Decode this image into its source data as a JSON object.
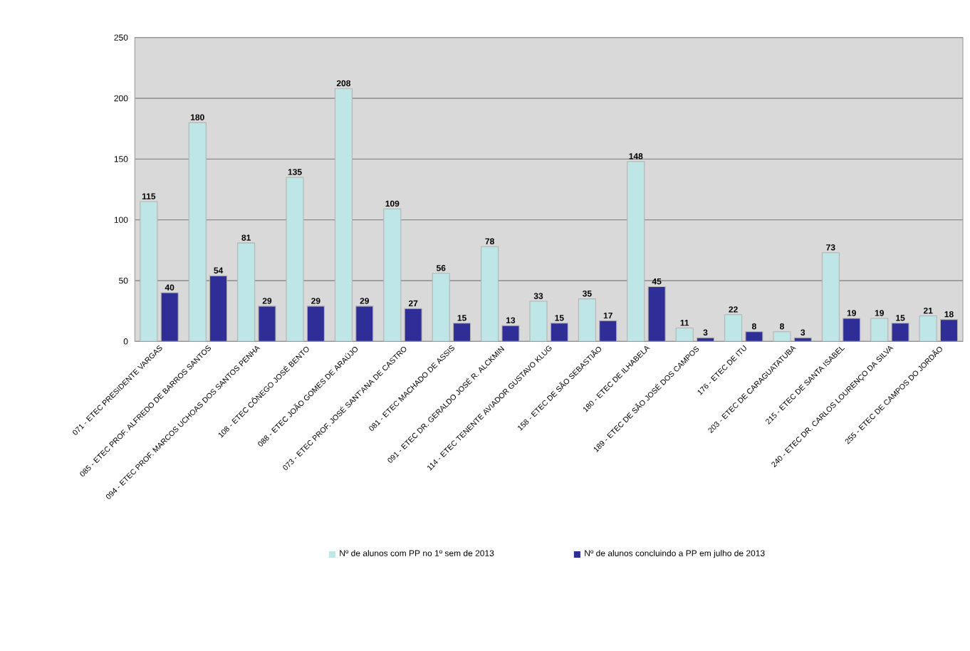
{
  "chart_data": {
    "type": "bar",
    "categories": [
      "071 - ETEC PRESIDENTE VARGAS",
      "085 - ETEC PROF. ALFREDO DE BARROS SANTOS",
      "094 - ETEC PROF. MARCOS UCHOAS DOS SANTOS PENHA",
      "108 - ETEC CÔNEGO JOSÉ BENTO",
      "088 - ETEC JOÃO GOMES DE ARAÚJO",
      "073 - ETEC PROF. JOSÉ SANT'ANA DE CASTRO",
      "081 - ETEC MACHADO DE ASSIS",
      "091 - ETEC DR. GERALDO JOSÉ R. ALCKMIN",
      "114 - ETEC TENENTE AVIADOR GUSTAVO KLUG",
      "158 - ETEC DE SÃO SEBASTIÃO",
      "180 - ETEC DE ILHABELA",
      "189 - ETEC DE SÃO JOSÉ DOS CAMPOS",
      "176 - ETEC DE ITU",
      "203 - ETEC DE CARAGUATATUBA",
      "215 - ETEC DE SANTA ISABEL",
      "240 - ETEC DR. CARLOS LOURENÇO DA SILVA",
      "255 - ETEC DE CAMPOS DO JORDÃO"
    ],
    "series": [
      {
        "name": "Nº de alunos com PP no 1º sem de 2013",
        "color": "#bfe6e6",
        "values": [
          115,
          180,
          81,
          135,
          208,
          109,
          56,
          78,
          33,
          35,
          148,
          11,
          22,
          8,
          73,
          19,
          21
        ]
      },
      {
        "name": "Nº de alunos concluindo a PP em julho de 2013",
        "color": "#2e2e96",
        "values": [
          40,
          54,
          29,
          29,
          29,
          27,
          15,
          13,
          15,
          17,
          45,
          3,
          8,
          3,
          19,
          15,
          18
        ]
      }
    ],
    "ylim": [
      0,
      250
    ],
    "yticks": [
      0,
      50,
      100,
      150,
      200,
      250
    ],
    "grid": "y",
    "legend": "bottom",
    "data_labels": true
  }
}
